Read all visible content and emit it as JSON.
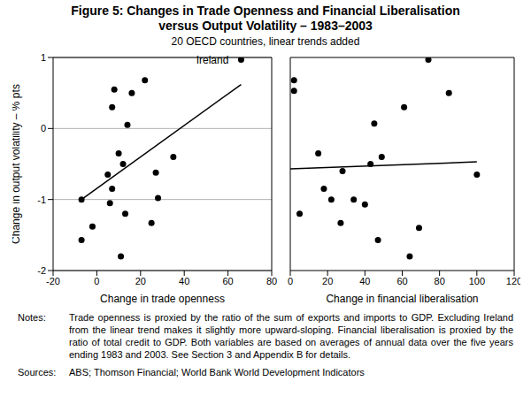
{
  "title": "Figure 5: Changes in Trade Openness and Financial Liberalisation versus Output Volatility – 1983–2003",
  "subtitle": "20 OECD countries, linear trends added",
  "notes_label": "Notes:",
  "notes": "Trade openness is proxied by the ratio of the sum of exports and imports to GDP. Excluding Ireland from the linear trend makes it slightly more upward-sloping. Financial liberalisation is proxied by the ratio of total credit to GDP. Both variables are based on averages of annual data over the five years ending 1983 and 2003. See Section 3 and Appendix B for details.",
  "sources_label": "Sources:",
  "sources": "ABS; Thomson Financial; World Bank World Development Indicators",
  "chart_data": [
    {
      "type": "scatter",
      "x_label": "Change in trade openness",
      "y_label": "Change in output volatility – % pts",
      "xlim": [
        -20,
        80
      ],
      "xticks": [
        -20,
        0,
        20,
        40,
        60,
        80
      ],
      "ylim": [
        -2,
        1
      ],
      "yticks": [
        -2,
        -1,
        0,
        1
      ],
      "grid": true,
      "color": "#000000",
      "marker": "circle",
      "x": [
        -7,
        -7,
        -2,
        5,
        6,
        7,
        7,
        8,
        10,
        11,
        12,
        13,
        14,
        16,
        22,
        25,
        27,
        28,
        35,
        66
      ],
      "values": [
        -1.0,
        -1.57,
        -1.38,
        -0.65,
        -1.05,
        -0.85,
        0.3,
        0.55,
        -0.35,
        -1.8,
        -0.5,
        -1.2,
        0.05,
        0.5,
        0.68,
        -1.33,
        -0.62,
        -0.98,
        -0.4,
        0.97
      ],
      "trend": {
        "x": [
          -7,
          66
        ],
        "values": [
          -1.0,
          0.62
        ],
        "line_style": "solid"
      },
      "annotations": [
        {
          "text": "Ireland",
          "x": 66,
          "y": 0.97
        }
      ]
    },
    {
      "type": "scatter",
      "x_label": "Change in financial liberalisation",
      "xlim": [
        0,
        120
      ],
      "xticks": [
        0,
        20,
        40,
        60,
        80,
        100,
        120
      ],
      "ylim": [
        -2,
        1
      ],
      "yticks": [
        -2,
        -1,
        0,
        1
      ],
      "grid": true,
      "tick_labels": "x",
      "color": "#000000",
      "marker": "circle",
      "x": [
        2,
        2,
        5,
        15,
        18,
        22,
        27,
        28,
        34,
        40,
        43,
        45,
        47,
        49,
        61,
        64,
        69,
        74,
        85,
        100
      ],
      "values": [
        0.53,
        0.68,
        -1.2,
        -0.35,
        -0.85,
        -1.0,
        -1.33,
        -0.6,
        -1.0,
        -1.07,
        -0.5,
        0.07,
        -1.57,
        -0.4,
        0.3,
        -1.8,
        -1.4,
        0.97,
        0.5,
        -0.65
      ],
      "trend": {
        "x": [
          0,
          100
        ],
        "values": [
          -0.57,
          -0.47
        ],
        "line_style": "solid"
      }
    }
  ]
}
